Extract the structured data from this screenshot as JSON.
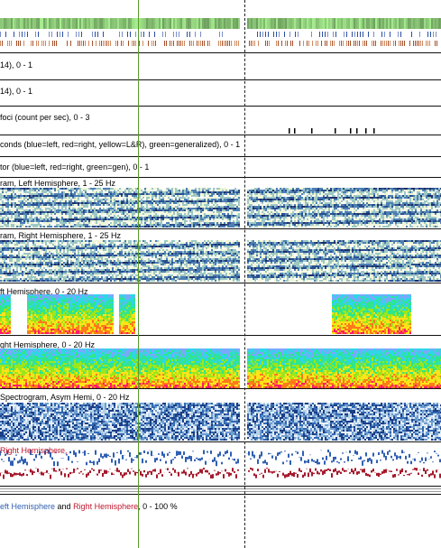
{
  "colors": {
    "accent_green": "#5a9a2a",
    "spectro_dark": "#1f2d66",
    "left_hemi": "#2f5fb3",
    "right_hemi": "#c0152b"
  },
  "panels": [
    {
      "label": "14), 0 - 1"
    },
    {
      "label": "14), 0 - 1"
    },
    {
      "label": "foci (count per sec), 0 - 3"
    },
    {
      "label": "conds (blue=left, red=right, yellow=L&R), green=generalized),  0 - 1"
    },
    {
      "label": "tor (blue=left, red=right, green=gen),  0 - 1"
    },
    {
      "label": "ram, Left Hemisphere, 1 - 25 Hz"
    },
    {
      "label": "ram, Right Hemisphere, 1 - 25 Hz"
    },
    {
      "label": "ft Hemisphere, 0 - 20 Hz"
    },
    {
      "label": "ght Hemisphere, 0 - 20 Hz"
    },
    {
      "label": " Spectrogram, Asym Hemi, 0 - 20 Hz"
    },
    {
      "label_prefix": "",
      "label_red": "Right Hemisphere,"
    },
    {
      "label_blue": "eft Hemisphere",
      "label_mid": " and ",
      "label_red": "Right Hemisphere",
      "label_tail": ",  0 - 100 %"
    }
  ]
}
